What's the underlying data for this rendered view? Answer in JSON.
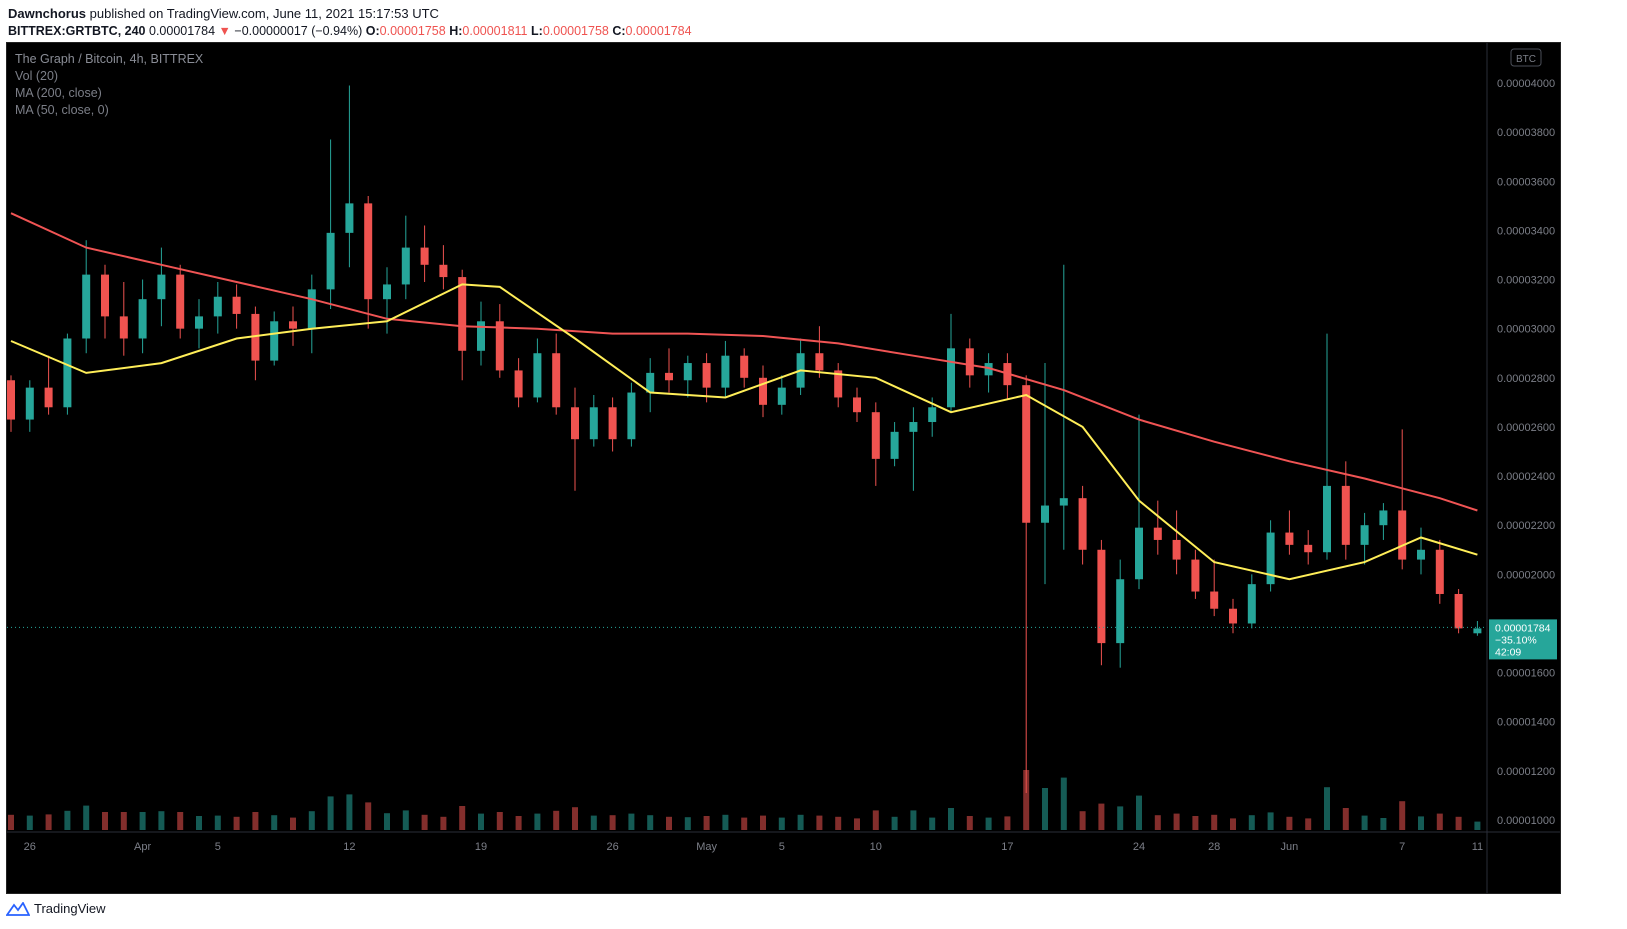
{
  "header": {
    "author": "Dawnchorus",
    "published": "published on TradingView.com, June 11, 2021 15:17:53 UTC",
    "symbol": "BITTREX:GRTBTC, 240",
    "price": "0.00001784",
    "change": "−0.00000017 (−0.94%)",
    "o_label": "O:",
    "o": "0.00001758",
    "h_label": "H:",
    "h": "0.00001811",
    "l_label": "L:",
    "l": "0.00001758",
    "c_label": "C:",
    "c": "0.00001784"
  },
  "legend": {
    "title": "The Graph / Bitcoin, 4h, BITTREX",
    "vol": "Vol (20)",
    "ma200": "MA (200, close)",
    "ma50": "MA (50, close, 0)"
  },
  "price_axis": {
    "unit_badge": "BTC",
    "ticks": [
      "0.00004000",
      "0.00003800",
      "0.00003600",
      "0.00003400",
      "0.00003200",
      "0.00003000",
      "0.00002800",
      "0.00002600",
      "0.00002400",
      "0.00002200",
      "0.00002000",
      "0.00001800",
      "0.00001600",
      "0.00001400",
      "0.00001200",
      "0.00001000"
    ],
    "last_price_label": "0.00001784",
    "last_change_label": "−35.10%",
    "countdown_label": "42:09"
  },
  "time_axis": {
    "ticks": [
      "26",
      "Apr",
      "5",
      "12",
      "19",
      "26",
      "May",
      "5",
      "10",
      "17",
      "24",
      "28",
      "Jun",
      "7",
      "11"
    ]
  },
  "colors": {
    "background": "#000000",
    "up": "#26a69a",
    "down": "#ef5350",
    "ma200": "#f05454",
    "ma50": "#ffee58",
    "vol_ma": "#ff9b42",
    "axis_text": "#7c7f88",
    "last_price_bg": "#26a69a"
  },
  "footer": {
    "brand": "TradingView"
  },
  "chart_data": {
    "type": "candlestick",
    "title": "The Graph / Bitcoin, 4h, BITTREX",
    "xlabel": "",
    "ylabel": "",
    "ylim": [
      9e-06,
      4.13e-05
    ],
    "grid": false,
    "date_range": [
      "2021-03-25",
      "2021-06-11"
    ],
    "series": [
      {
        "name": "MA (200, close)",
        "x": [
          "2021-03-25",
          "2021-03-29",
          "2021-04-02",
          "2021-04-06",
          "2021-04-10",
          "2021-04-14",
          "2021-04-18",
          "2021-04-22",
          "2021-04-26",
          "2021-04-30",
          "2021-05-04",
          "2021-05-08",
          "2021-05-12",
          "2021-05-16",
          "2021-05-20",
          "2021-05-24",
          "2021-05-28",
          "2021-06-01",
          "2021-06-05",
          "2021-06-09",
          "2021-06-11"
        ],
        "values": [
          3.47e-05,
          3.33e-05,
          3.26e-05,
          3.19e-05,
          3.12e-05,
          3.04e-05,
          3.01e-05,
          3e-05,
          2.98e-05,
          2.98e-05,
          2.97e-05,
          2.94e-05,
          2.89e-05,
          2.84e-05,
          2.75e-05,
          2.63e-05,
          2.54e-05,
          2.46e-05,
          2.39e-05,
          2.31e-05,
          2.26e-05
        ]
      },
      {
        "name": "MA (50, close, 0)",
        "x": [
          "2021-03-25",
          "2021-03-29",
          "2021-04-02",
          "2021-04-06",
          "2021-04-10",
          "2021-04-14",
          "2021-04-18",
          "2021-04-20",
          "2021-04-24",
          "2021-04-28",
          "2021-05-02",
          "2021-05-06",
          "2021-05-10",
          "2021-05-14",
          "2021-05-18",
          "2021-05-21",
          "2021-05-24",
          "2021-05-28",
          "2021-06-01",
          "2021-06-05",
          "2021-06-08",
          "2021-06-11"
        ],
        "values": [
          2.95e-05,
          2.82e-05,
          2.86e-05,
          2.96e-05,
          3e-05,
          3.03e-05,
          3.18e-05,
          3.17e-05,
          2.96e-05,
          2.74e-05,
          2.72e-05,
          2.83e-05,
          2.8e-05,
          2.66e-05,
          2.73e-05,
          2.6e-05,
          2.3e-05,
          2.05e-05,
          1.98e-05,
          2.05e-05,
          2.15e-05,
          2.08e-05
        ]
      }
    ],
    "candles": [
      {
        "date": "2021-03-25",
        "o": 2.79e-05,
        "h": 2.81e-05,
        "l": 2.58e-05,
        "c": 2.63e-05
      },
      {
        "date": "2021-03-26",
        "o": 2.63e-05,
        "h": 2.79e-05,
        "l": 2.58e-05,
        "c": 2.76e-05
      },
      {
        "date": "2021-03-27",
        "o": 2.76e-05,
        "h": 2.89e-05,
        "l": 2.65e-05,
        "c": 2.68e-05
      },
      {
        "date": "2021-03-28",
        "o": 2.68e-05,
        "h": 2.98e-05,
        "l": 2.65e-05,
        "c": 2.96e-05
      },
      {
        "date": "2021-03-29",
        "o": 2.96e-05,
        "h": 3.36e-05,
        "l": 2.9e-05,
        "c": 3.22e-05
      },
      {
        "date": "2021-03-30",
        "o": 3.22e-05,
        "h": 3.26e-05,
        "l": 2.96e-05,
        "c": 3.05e-05
      },
      {
        "date": "2021-03-31",
        "o": 3.05e-05,
        "h": 3.19e-05,
        "l": 2.89e-05,
        "c": 2.96e-05
      },
      {
        "date": "2021-04-01",
        "o": 2.96e-05,
        "h": 3.2e-05,
        "l": 2.9e-05,
        "c": 3.12e-05
      },
      {
        "date": "2021-04-02",
        "o": 3.12e-05,
        "h": 3.33e-05,
        "l": 3.01e-05,
        "c": 3.22e-05
      },
      {
        "date": "2021-04-03",
        "o": 3.22e-05,
        "h": 3.26e-05,
        "l": 2.96e-05,
        "c": 3e-05
      },
      {
        "date": "2021-04-04",
        "o": 3e-05,
        "h": 3.12e-05,
        "l": 2.92e-05,
        "c": 3.05e-05
      },
      {
        "date": "2021-04-05",
        "o": 3.05e-05,
        "h": 3.19e-05,
        "l": 2.98e-05,
        "c": 3.13e-05
      },
      {
        "date": "2021-04-06",
        "o": 3.13e-05,
        "h": 3.18e-05,
        "l": 3e-05,
        "c": 3.06e-05
      },
      {
        "date": "2021-04-07",
        "o": 3.06e-05,
        "h": 3.09e-05,
        "l": 2.79e-05,
        "c": 2.87e-05
      },
      {
        "date": "2021-04-08",
        "o": 2.87e-05,
        "h": 3.07e-05,
        "l": 2.85e-05,
        "c": 3.03e-05
      },
      {
        "date": "2021-04-09",
        "o": 3.03e-05,
        "h": 3.09e-05,
        "l": 2.93e-05,
        "c": 3e-05
      },
      {
        "date": "2021-04-10",
        "o": 3e-05,
        "h": 3.22e-05,
        "l": 2.9e-05,
        "c": 3.16e-05
      },
      {
        "date": "2021-04-11",
        "o": 3.16e-05,
        "h": 3.77e-05,
        "l": 3.08e-05,
        "c": 3.39e-05
      },
      {
        "date": "2021-04-12",
        "o": 3.39e-05,
        "h": 3.99e-05,
        "l": 3.25e-05,
        "c": 3.51e-05
      },
      {
        "date": "2021-04-13",
        "o": 3.51e-05,
        "h": 3.54e-05,
        "l": 3e-05,
        "c": 3.12e-05
      },
      {
        "date": "2021-04-14",
        "o": 3.12e-05,
        "h": 3.25e-05,
        "l": 2.98e-05,
        "c": 3.18e-05
      },
      {
        "date": "2021-04-15",
        "o": 3.18e-05,
        "h": 3.46e-05,
        "l": 3.12e-05,
        "c": 3.33e-05
      },
      {
        "date": "2021-04-16",
        "o": 3.33e-05,
        "h": 3.42e-05,
        "l": 3.19e-05,
        "c": 3.26e-05
      },
      {
        "date": "2021-04-17",
        "o": 3.26e-05,
        "h": 3.34e-05,
        "l": 3.16e-05,
        "c": 3.21e-05
      },
      {
        "date": "2021-04-18",
        "o": 3.21e-05,
        "h": 3.24e-05,
        "l": 2.79e-05,
        "c": 2.91e-05
      },
      {
        "date": "2021-04-19",
        "o": 2.91e-05,
        "h": 3.11e-05,
        "l": 2.85e-05,
        "c": 3.03e-05
      },
      {
        "date": "2021-04-20",
        "o": 3.03e-05,
        "h": 3.1e-05,
        "l": 2.8e-05,
        "c": 2.83e-05
      },
      {
        "date": "2021-04-21",
        "o": 2.83e-05,
        "h": 2.88e-05,
        "l": 2.68e-05,
        "c": 2.72e-05
      },
      {
        "date": "2021-04-22",
        "o": 2.72e-05,
        "h": 2.96e-05,
        "l": 2.7e-05,
        "c": 2.9e-05
      },
      {
        "date": "2021-04-23",
        "o": 2.9e-05,
        "h": 2.98e-05,
        "l": 2.65e-05,
        "c": 2.68e-05
      },
      {
        "date": "2021-04-24",
        "o": 2.68e-05,
        "h": 2.76e-05,
        "l": 2.34e-05,
        "c": 2.55e-05
      },
      {
        "date": "2021-04-25",
        "o": 2.55e-05,
        "h": 2.73e-05,
        "l": 2.52e-05,
        "c": 2.68e-05
      },
      {
        "date": "2021-04-26",
        "o": 2.68e-05,
        "h": 2.72e-05,
        "l": 2.5e-05,
        "c": 2.55e-05
      },
      {
        "date": "2021-04-27",
        "o": 2.55e-05,
        "h": 2.78e-05,
        "l": 2.52e-05,
        "c": 2.74e-05
      },
      {
        "date": "2021-04-28",
        "o": 2.74e-05,
        "h": 2.88e-05,
        "l": 2.66e-05,
        "c": 2.82e-05
      },
      {
        "date": "2021-04-29",
        "o": 2.82e-05,
        "h": 2.92e-05,
        "l": 2.74e-05,
        "c": 2.79e-05
      },
      {
        "date": "2021-04-30",
        "o": 2.79e-05,
        "h": 2.89e-05,
        "l": 2.72e-05,
        "c": 2.86e-05
      },
      {
        "date": "2021-05-01",
        "o": 2.86e-05,
        "h": 2.9e-05,
        "l": 2.7e-05,
        "c": 2.76e-05
      },
      {
        "date": "2021-05-02",
        "o": 2.76e-05,
        "h": 2.95e-05,
        "l": 2.72e-05,
        "c": 2.89e-05
      },
      {
        "date": "2021-05-03",
        "o": 2.89e-05,
        "h": 2.92e-05,
        "l": 2.76e-05,
        "c": 2.8e-05
      },
      {
        "date": "2021-05-04",
        "o": 2.8e-05,
        "h": 2.85e-05,
        "l": 2.64e-05,
        "c": 2.69e-05
      },
      {
        "date": "2021-05-05",
        "o": 2.69e-05,
        "h": 2.81e-05,
        "l": 2.65e-05,
        "c": 2.76e-05
      },
      {
        "date": "2021-05-06",
        "o": 2.76e-05,
        "h": 2.96e-05,
        "l": 2.73e-05,
        "c": 2.9e-05
      },
      {
        "date": "2021-05-07",
        "o": 2.9e-05,
        "h": 3.01e-05,
        "l": 2.8e-05,
        "c": 2.83e-05
      },
      {
        "date": "2021-05-08",
        "o": 2.83e-05,
        "h": 2.86e-05,
        "l": 2.68e-05,
        "c": 2.72e-05
      },
      {
        "date": "2021-05-09",
        "o": 2.72e-05,
        "h": 2.76e-05,
        "l": 2.62e-05,
        "c": 2.66e-05
      },
      {
        "date": "2021-05-10",
        "o": 2.66e-05,
        "h": 2.7e-05,
        "l": 2.36e-05,
        "c": 2.47e-05
      },
      {
        "date": "2021-05-11",
        "o": 2.47e-05,
        "h": 2.62e-05,
        "l": 2.44e-05,
        "c": 2.58e-05
      },
      {
        "date": "2021-05-12",
        "o": 2.58e-05,
        "h": 2.68e-05,
        "l": 2.34e-05,
        "c": 2.62e-05
      },
      {
        "date": "2021-05-13",
        "o": 2.62e-05,
        "h": 2.72e-05,
        "l": 2.56e-05,
        "c": 2.68e-05
      },
      {
        "date": "2021-05-14",
        "o": 2.68e-05,
        "h": 3.06e-05,
        "l": 2.66e-05,
        "c": 2.92e-05
      },
      {
        "date": "2021-05-15",
        "o": 2.92e-05,
        "h": 2.96e-05,
        "l": 2.76e-05,
        "c": 2.81e-05
      },
      {
        "date": "2021-05-16",
        "o": 2.81e-05,
        "h": 2.9e-05,
        "l": 2.74e-05,
        "c": 2.86e-05
      },
      {
        "date": "2021-05-17",
        "o": 2.86e-05,
        "h": 2.9e-05,
        "l": 2.71e-05,
        "c": 2.77e-05
      },
      {
        "date": "2021-05-18",
        "o": 2.77e-05,
        "h": 2.81e-05,
        "l": 1.11e-05,
        "c": 2.21e-05
      },
      {
        "date": "2021-05-19",
        "o": 2.21e-05,
        "h": 2.86e-05,
        "l": 1.96e-05,
        "c": 2.28e-05
      },
      {
        "date": "2021-05-20",
        "o": 2.28e-05,
        "h": 3.26e-05,
        "l": 2.1e-05,
        "c": 2.31e-05
      },
      {
        "date": "2021-05-21",
        "o": 2.31e-05,
        "h": 2.36e-05,
        "l": 2.04e-05,
        "c": 2.1e-05
      },
      {
        "date": "2021-05-22",
        "o": 2.1e-05,
        "h": 2.14e-05,
        "l": 1.63e-05,
        "c": 1.72e-05
      },
      {
        "date": "2021-05-23",
        "o": 1.72e-05,
        "h": 2.06e-05,
        "l": 1.62e-05,
        "c": 1.98e-05
      },
      {
        "date": "2021-05-24",
        "o": 1.98e-05,
        "h": 2.65e-05,
        "l": 1.94e-05,
        "c": 2.19e-05
      },
      {
        "date": "2021-05-25",
        "o": 2.19e-05,
        "h": 2.3e-05,
        "l": 2.08e-05,
        "c": 2.14e-05
      },
      {
        "date": "2021-05-26",
        "o": 2.14e-05,
        "h": 2.26e-05,
        "l": 2e-05,
        "c": 2.06e-05
      },
      {
        "date": "2021-05-27",
        "o": 2.06e-05,
        "h": 2.1e-05,
        "l": 1.9e-05,
        "c": 1.93e-05
      },
      {
        "date": "2021-05-28",
        "o": 1.93e-05,
        "h": 2.06e-05,
        "l": 1.83e-05,
        "c": 1.86e-05
      },
      {
        "date": "2021-05-29",
        "o": 1.86e-05,
        "h": 1.9e-05,
        "l": 1.76e-05,
        "c": 1.8e-05
      },
      {
        "date": "2021-05-30",
        "o": 1.8e-05,
        "h": 2e-05,
        "l": 1.78e-05,
        "c": 1.96e-05
      },
      {
        "date": "2021-05-31",
        "o": 1.96e-05,
        "h": 2.22e-05,
        "l": 1.93e-05,
        "c": 2.17e-05
      },
      {
        "date": "2021-06-01",
        "o": 2.17e-05,
        "h": 2.26e-05,
        "l": 2.08e-05,
        "c": 2.12e-05
      },
      {
        "date": "2021-06-02",
        "o": 2.12e-05,
        "h": 2.18e-05,
        "l": 2.04e-05,
        "c": 2.09e-05
      },
      {
        "date": "2021-06-03",
        "o": 2.09e-05,
        "h": 2.98e-05,
        "l": 2.06e-05,
        "c": 2.36e-05
      },
      {
        "date": "2021-06-04",
        "o": 2.36e-05,
        "h": 2.46e-05,
        "l": 2.06e-05,
        "c": 2.12e-05
      },
      {
        "date": "2021-06-05",
        "o": 2.12e-05,
        "h": 2.25e-05,
        "l": 2.04e-05,
        "c": 2.2e-05
      },
      {
        "date": "2021-06-06",
        "o": 2.2e-05,
        "h": 2.29e-05,
        "l": 2.14e-05,
        "c": 2.26e-05
      },
      {
        "date": "2021-06-07",
        "o": 2.26e-05,
        "h": 2.59e-05,
        "l": 2.02e-05,
        "c": 2.06e-05
      },
      {
        "date": "2021-06-08",
        "o": 2.06e-05,
        "h": 2.19e-05,
        "l": 2e-05,
        "c": 2.1e-05
      },
      {
        "date": "2021-06-09",
        "o": 2.1e-05,
        "h": 2.14e-05,
        "l": 1.88e-05,
        "c": 1.92e-05
      },
      {
        "date": "2021-06-10",
        "o": 1.92e-05,
        "h": 1.94e-05,
        "l": 1.76e-05,
        "c": 1.78e-05
      },
      {
        "date": "2021-06-11",
        "o": 1.76e-05,
        "h": 1.81e-05,
        "l": 1.75e-05,
        "c": 1.78e-05
      }
    ],
    "last": 1.784e-05
  }
}
